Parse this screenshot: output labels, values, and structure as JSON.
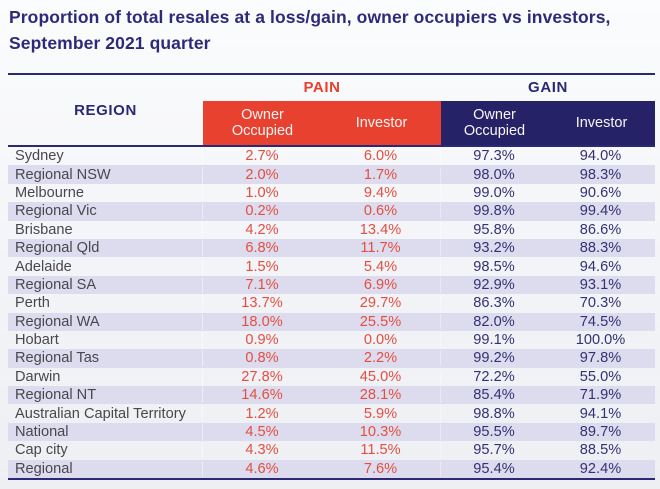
{
  "title": {
    "line1": "Proportion of total resales at a loss/gain, owner occupiers vs investors,",
    "line2": "September 2021 quarter"
  },
  "header": {
    "region": "REGION",
    "pain_group": "PAIN",
    "gain_group": "GAIN",
    "owner_occupied": "Owner Occupied",
    "investor": "Investor"
  },
  "chart_data": {
    "type": "table",
    "title": "Proportion of total resales at a loss/gain, owner occupiers vs investors, September 2021 quarter",
    "column_groups": [
      "PAIN",
      "GAIN"
    ],
    "columns": [
      "Region",
      "Pain Owner Occupied",
      "Pain Investor",
      "Gain Owner Occupied",
      "Gain Investor"
    ],
    "rows": [
      [
        "Sydney",
        "2.7%",
        "6.0%",
        "97.3%",
        "94.0%"
      ],
      [
        "Regional NSW",
        "2.0%",
        "1.7%",
        "98.0%",
        "98.3%"
      ],
      [
        "Melbourne",
        "1.0%",
        "9.4%",
        "99.0%",
        "90.6%"
      ],
      [
        "Regional Vic",
        "0.2%",
        "0.6%",
        "99.8%",
        "99.4%"
      ],
      [
        "Brisbane",
        "4.2%",
        "13.4%",
        "95.8%",
        "86.6%"
      ],
      [
        "Regional Qld",
        "6.8%",
        "11.7%",
        "93.2%",
        "88.3%"
      ],
      [
        "Adelaide",
        "1.5%",
        "5.4%",
        "98.5%",
        "94.6%"
      ],
      [
        "Regional SA",
        "7.1%",
        "6.9%",
        "92.9%",
        "93.1%"
      ],
      [
        "Perth",
        "13.7%",
        "29.7%",
        "86.3%",
        "70.3%"
      ],
      [
        "Regional WA",
        "18.0%",
        "25.5%",
        "82.0%",
        "74.5%"
      ],
      [
        "Hobart",
        "0.9%",
        "0.0%",
        "99.1%",
        "100.0%"
      ],
      [
        "Regional Tas",
        "0.8%",
        "2.2%",
        "99.2%",
        "97.8%"
      ],
      [
        "Darwin",
        "27.8%",
        "45.0%",
        "72.2%",
        "55.0%"
      ],
      [
        "Regional NT",
        "14.6%",
        "28.1%",
        "85.4%",
        "71.9%"
      ],
      [
        "Australian Capital Territory",
        "1.2%",
        "5.9%",
        "98.8%",
        "94.1%"
      ],
      [
        "National",
        "4.5%",
        "10.3%",
        "95.5%",
        "89.7%"
      ],
      [
        "Cap city",
        "4.3%",
        "11.5%",
        "95.7%",
        "88.5%"
      ],
      [
        "Regional",
        "4.6%",
        "7.6%",
        "95.4%",
        "92.4%"
      ]
    ]
  },
  "colors": {
    "title_navy": "#2E2A7A",
    "rule_navy": "#2B2875",
    "pain_red_block": "#E8412F",
    "gain_navy_block": "#262268",
    "row_alt_lavender": "#DDDCEE",
    "pain_value_text": "#E14F42",
    "gain_value_text": "#343173",
    "region_text": "#48474D"
  }
}
